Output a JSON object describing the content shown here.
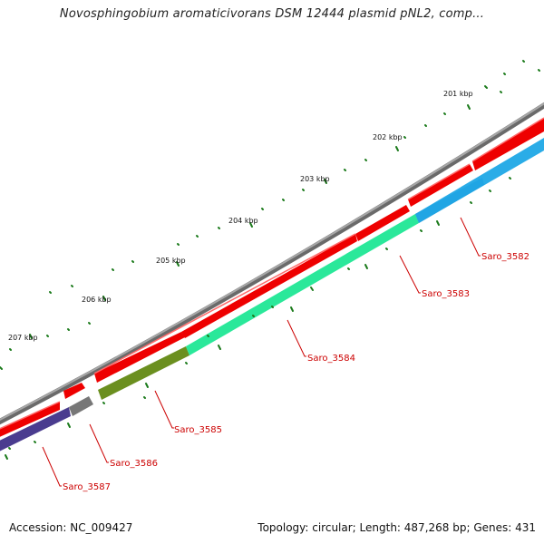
{
  "title": "Novosphingobium aromaticivorans DSM 12444 plasmid pNL2, comp...",
  "footer": {
    "accession": "Accession: NC_009427",
    "topology": "Topology: circular; Length: 487,268 bp; Genes: 431"
  },
  "kbp_labels": [
    "201 kbp",
    "202 kbp",
    "203 kbp",
    "204 kbp",
    "205 kbp",
    "206 kbp",
    "207 kbp"
  ],
  "genes": [
    {
      "label": "Saro_3582",
      "color": "#1fa8e6"
    },
    {
      "label": "Saro_3583",
      "color": "#2ae89a"
    },
    {
      "label": "Saro_3584",
      "color": "#2ae89a"
    },
    {
      "label": "Saro_3585",
      "color": "#6b8f1f"
    },
    {
      "label": "Saro_3586",
      "color": "#777777"
    },
    {
      "label": "Saro_3587",
      "color": "#4a3c8f"
    }
  ],
  "colors": {
    "backbone": "#888888",
    "cds_forward": "#ee0000",
    "tick": "#1a7a1a",
    "label_line": "#cc0000"
  }
}
